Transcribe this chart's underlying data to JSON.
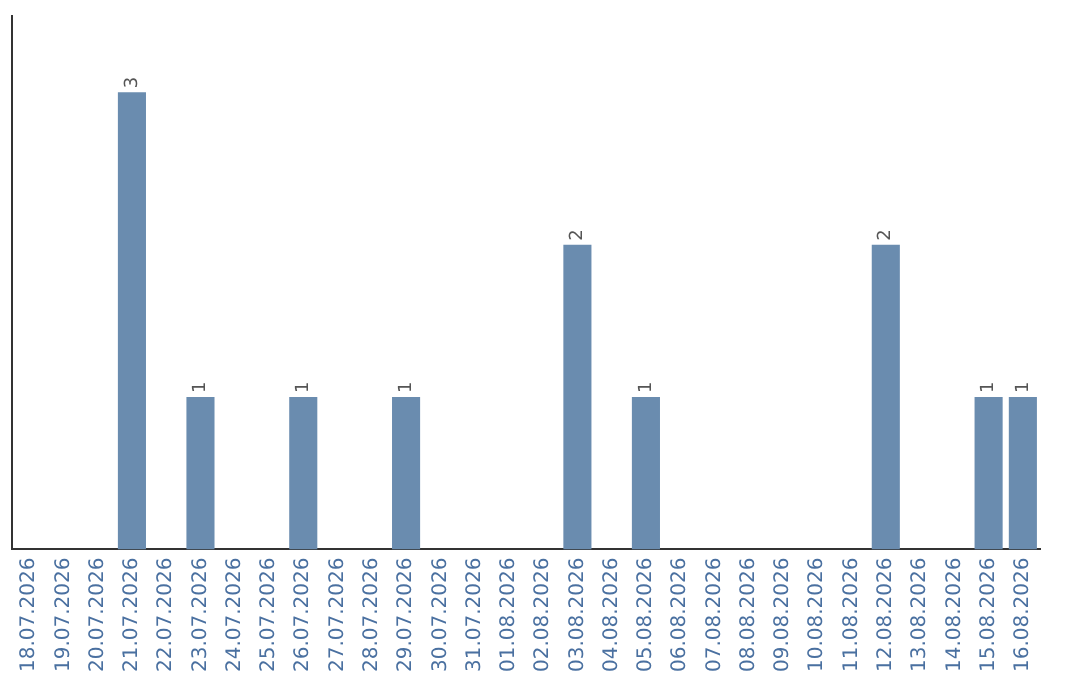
{
  "chart_data": {
    "type": "bar",
    "categories": [
      "18.07.2026",
      "19.07.2026",
      "20.07.2026",
      "21.07.2026",
      "22.07.2026",
      "23.07.2026",
      "24.07.2026",
      "25.07.2026",
      "26.07.2026",
      "27.07.2026",
      "28.07.2026",
      "29.07.2026",
      "30.07.2026",
      "31.07.2026",
      "01.08.2026",
      "02.08.2026",
      "03.08.2026",
      "04.08.2026",
      "05.08.2026",
      "06.08.2026",
      "07.08.2026",
      "08.08.2026",
      "09.08.2026",
      "10.08.2026",
      "11.08.2026",
      "12.08.2026",
      "13.08.2026",
      "14.08.2026",
      "15.08.2026",
      "16.08.2026"
    ],
    "values": [
      0,
      0,
      0,
      3,
      0,
      1,
      0,
      0,
      1,
      0,
      0,
      1,
      0,
      0,
      0,
      0,
      2,
      0,
      1,
      0,
      0,
      0,
      0,
      0,
      0,
      2,
      0,
      0,
      1,
      1
    ],
    "value_labels": [
      null,
      null,
      null,
      "3",
      null,
      "1",
      null,
      null,
      "1",
      null,
      null,
      "1",
      null,
      null,
      null,
      null,
      "2",
      null,
      "1",
      null,
      null,
      null,
      null,
      null,
      null,
      "2",
      null,
      null,
      "1",
      "1"
    ],
    "color": "#6a8caf",
    "grid": false,
    "legend": false,
    "tick_labels": "x"
  }
}
